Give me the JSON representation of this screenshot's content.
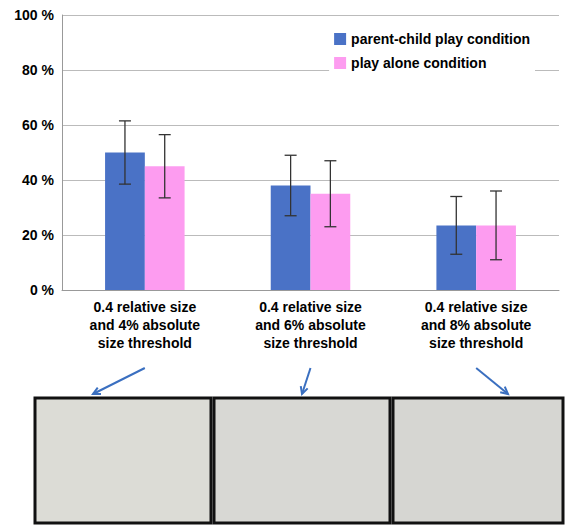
{
  "chart_data": {
    "type": "bar",
    "categories": [
      "0.4 relative size and 4% absolute size threshold",
      "0.4 relative size and 6% absolute size threshold",
      "0.4 relative size and 8% absolute size threshold"
    ],
    "series": [
      {
        "name": "parent-child play condition",
        "color": "#4a72c6",
        "values": [
          50,
          38,
          23.5
        ],
        "errors": [
          11.5,
          11,
          10.5
        ]
      },
      {
        "name": "play alone condition",
        "color": "#fd9cf0",
        "values": [
          45,
          35,
          23.5
        ],
        "errors": [
          11.5,
          12,
          12.5
        ]
      }
    ],
    "ylim": [
      0,
      100
    ],
    "yticks": [
      {
        "value": 0,
        "label": "0 %"
      },
      {
        "value": 20,
        "label": "20 %"
      },
      {
        "value": 40,
        "label": "40 %"
      },
      {
        "value": 60,
        "label": "60 %"
      },
      {
        "value": 80,
        "label": "80 %"
      },
      {
        "value": 100,
        "label": "100 %"
      }
    ],
    "grid": true,
    "legend": "upper right"
  }
}
